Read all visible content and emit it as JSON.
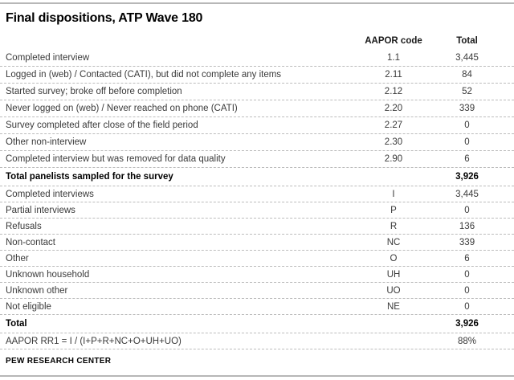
{
  "title": "Final dispositions, ATP Wave 180",
  "table": {
    "columns": {
      "code": "AAPOR code",
      "total": "Total"
    },
    "rows": [
      {
        "label": "Completed interview",
        "code": "1.1",
        "total": "3,445",
        "emphasis": false
      },
      {
        "label": "Logged in (web) / Contacted (CATI), but did not complete any items",
        "code": "2.11",
        "total": "84",
        "emphasis": false
      },
      {
        "label": "Started survey; broke off before completion",
        "code": "2.12",
        "total": "52",
        "emphasis": false
      },
      {
        "label": "Never logged on (web) / Never reached on phone (CATI)",
        "code": "2.20",
        "total": "339",
        "emphasis": false
      },
      {
        "label": "Survey completed after close of the field period",
        "code": "2.27",
        "total": "0",
        "emphasis": false
      },
      {
        "label": "Other non-interview",
        "code": "2.30",
        "total": "0",
        "emphasis": false
      },
      {
        "label": "Completed interview but was removed for data quality",
        "code": "2.90",
        "total": "6",
        "emphasis": false
      },
      {
        "label": "Total panelists sampled for the survey",
        "code": "",
        "total": "3,926",
        "emphasis": true
      },
      {
        "label": "Completed interviews",
        "code": "I",
        "total": "3,445",
        "emphasis": false
      },
      {
        "label": "Partial interviews",
        "code": "P",
        "total": "0",
        "emphasis": false
      },
      {
        "label": "Refusals",
        "code": "R",
        "total": "136",
        "emphasis": false
      },
      {
        "label": "Non-contact",
        "code": "NC",
        "total": "339",
        "emphasis": false
      },
      {
        "label": "Other",
        "code": "O",
        "total": "6",
        "emphasis": false
      },
      {
        "label": "Unknown household",
        "code": "UH",
        "total": "0",
        "emphasis": false
      },
      {
        "label": "Unknown other",
        "code": "UO",
        "total": "0",
        "emphasis": false
      },
      {
        "label": "Not eligible",
        "code": "NE",
        "total": "0",
        "emphasis": false
      },
      {
        "label": "Total",
        "code": "",
        "total": "3,926",
        "emphasis": true
      },
      {
        "label": "AAPOR RR1 = I / (I+P+R+NC+O+UH+UO)",
        "code": "",
        "total": "88%",
        "emphasis": false
      }
    ]
  },
  "footer": {
    "source": "PEW RESEARCH CENTER"
  },
  "colors": {
    "rule_gray": "#b7b7b7",
    "row_divider": "#bcbcbc",
    "body_text": "#3a3a3a",
    "emphasis_text": "#000000"
  }
}
